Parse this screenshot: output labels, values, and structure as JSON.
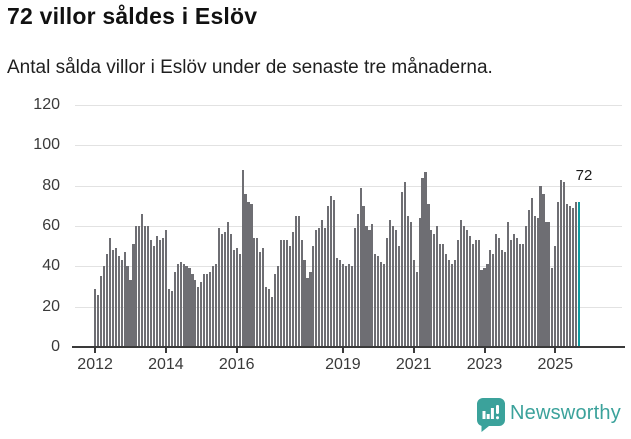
{
  "header": {
    "title": "72 villor såldes i Eslöv",
    "subtitle": "Antal sålda villor i Eslöv under de senaste tre månaderna."
  },
  "chart_data": {
    "type": "bar",
    "title": "72 villor såldes i Eslöv",
    "subtitle": "Antal sålda villor i Eslöv under de senaste tre månaderna.",
    "unit": "sålda villor per 3-månadersperiod",
    "x_start": "2012-01",
    "x_end": "2025-09",
    "x_granularity": "month",
    "values": [
      29,
      26,
      35,
      40,
      46,
      54,
      48,
      49,
      45,
      43,
      47,
      40,
      33,
      51,
      60,
      60,
      66,
      60,
      60,
      53,
      50,
      55,
      53,
      54,
      58,
      29,
      28,
      37,
      41,
      42,
      41,
      40,
      39,
      36,
      33,
      30,
      32,
      36,
      36,
      37,
      40,
      41,
      59,
      56,
      57,
      62,
      56,
      48,
      49,
      46,
      88,
      76,
      72,
      71,
      54,
      54,
      47,
      49,
      30,
      29,
      25,
      36,
      40,
      53,
      53,
      53,
      50,
      57,
      65,
      65,
      53,
      43,
      34,
      37,
      50,
      58,
      59,
      63,
      59,
      70,
      75,
      73,
      44,
      43,
      41,
      40,
      41,
      40,
      59,
      66,
      79,
      70,
      60,
      58,
      61,
      46,
      45,
      42,
      41,
      54,
      63,
      60,
      58,
      50,
      77,
      82,
      65,
      62,
      43,
      37,
      64,
      84,
      87,
      71,
      58,
      56,
      60,
      51,
      51,
      46,
      43,
      41,
      43,
      53,
      63,
      60,
      58,
      55,
      51,
      53,
      53,
      38,
      39,
      41,
      48,
      46,
      56,
      54,
      48,
      47,
      62,
      53,
      56,
      54,
      51,
      51,
      60,
      68,
      74,
      65,
      64,
      80,
      76,
      62,
      62,
      39,
      50,
      72,
      83,
      82,
      71,
      70,
      69,
      72,
      72
    ],
    "highlight_last": true,
    "highlight_value_label": "72",
    "y_ticks": [
      0,
      20,
      40,
      60,
      80,
      100,
      120
    ],
    "ylim": [
      0,
      120
    ],
    "x_tick_years": [
      2012,
      2014,
      2016,
      2019,
      2021,
      2023,
      2025
    ],
    "grid": true,
    "legend": "none",
    "bar_color": "#6e6e73",
    "highlight_color": "#0c9a9f"
  },
  "footer": {
    "brand": "Newsworthy",
    "brand_color": "#3ba29b"
  }
}
